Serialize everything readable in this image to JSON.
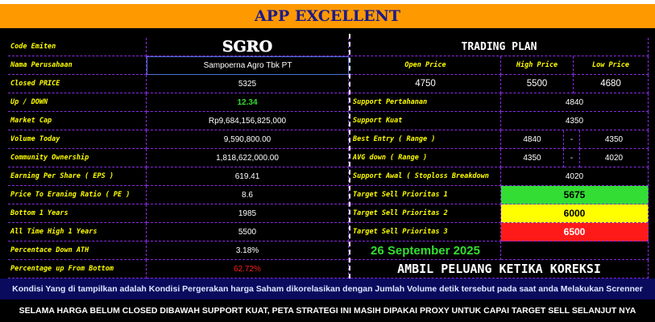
{
  "header": {
    "title": "APP EXCELLENT"
  },
  "left": {
    "rows": [
      [
        "Code Emiten",
        "SGRO"
      ],
      [
        "Nama Perusahaan",
        "Sampoerna Agro Tbk PT"
      ],
      [
        "Closed PRICE",
        "5325"
      ],
      [
        "Up / DOWN",
        "12.34"
      ],
      [
        "Market Cap",
        "Rp9,684,156,825,000"
      ],
      [
        "Volume Today",
        "9,590,800.00"
      ],
      [
        "Community Ownership",
        "1,818,622,000.00"
      ],
      [
        "Earning Per Share ( EPS )",
        "619.41"
      ],
      [
        "Price To Eraning Ratio ( PE )",
        "8.6"
      ],
      [
        "Bottom 1 Years",
        "1985"
      ],
      [
        "All Time High 1 Years",
        "5500"
      ],
      [
        "Percentace Down ATH",
        "3.18%"
      ],
      [
        "Percentage up From Bottom",
        "62.72%"
      ]
    ]
  },
  "right": {
    "title": "TRADING PLAN",
    "headers": [
      "Open Price",
      "High Price",
      "Low Price"
    ],
    "prices": [
      "4750",
      "5500",
      "4680"
    ],
    "rows": [
      [
        "Support Pertahanan",
        "4840"
      ],
      [
        "Support Kuat",
        "4350"
      ],
      [
        "Best Entry ( Range )",
        "4840",
        "-",
        "4350"
      ],
      [
        "AVG down ( Range )",
        "4350",
        "-",
        "4020"
      ],
      [
        "Support Awal ( Stoploss Breakdown",
        "4020"
      ]
    ],
    "targets": [
      [
        "Target Sell Prioritas 1",
        "5675"
      ],
      [
        "Target Sell Prioritas 2",
        "6000"
      ],
      [
        "Target Sell Prioritas 3",
        "6500"
      ]
    ],
    "date": "26 September 2025",
    "slogan": "AMBIL PELUANG KETIKA KOREKSI"
  },
  "footer": {
    "note": "Kondisi Yang di tampilkan adalah Kondisi Pergerakan harga Saham dikorelasikan dengan Jumlah Volume detik tersebut pada saat anda Melakukan Screnner",
    "warning": "SELAMA HARGA BELUM CLOSED DIBAWAH SUPPORT KUAT, PETA STRATEGI INI MASIH DIPAKAI PROXY UNTUK CAPAI TARGET SELL SELANJUT NYA"
  }
}
